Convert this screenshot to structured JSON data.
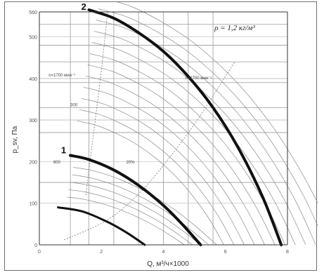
{
  "chart_data": {
    "type": "line",
    "title": "",
    "density_label": "ρ = 1,2 кг/м³",
    "xlabel": "Q, м³/ч×1000",
    "ylabel": "p_sv, Па",
    "xlim": [
      0,
      8
    ],
    "ylim": [
      0,
      560
    ],
    "x_ticks": [
      {
        "value": 0,
        "label": "0"
      },
      {
        "value": 2,
        "label": "2"
      },
      {
        "value": 4,
        "label": "4"
      },
      {
        "value": 6,
        "label": "6"
      },
      {
        "value": 8,
        "label": "8"
      }
    ],
    "y_ticks": [
      {
        "value": 0,
        "label": "0"
      },
      {
        "value": 100,
        "label": "100"
      },
      {
        "value": 200,
        "label": "200"
      },
      {
        "value": 300,
        "label": "300"
      },
      {
        "value": 400,
        "label": "400"
      },
      {
        "value": 500,
        "label": "500"
      },
      {
        "value": 560,
        "label": "560"
      }
    ],
    "grid": true,
    "series": [
      {
        "name": "1",
        "role": "main",
        "x": [
          1.0,
          1.6,
          2.4,
          3.2,
          4.0,
          4.6,
          5.2
        ],
        "values": [
          215,
          205,
          180,
          143,
          95,
          50,
          0
        ]
      },
      {
        "name": "2",
        "role": "main",
        "x": [
          1.6,
          2.4,
          3.2,
          4.0,
          4.8,
          5.6,
          6.4,
          7.2,
          7.8
        ],
        "values": [
          565,
          545,
          510,
          465,
          405,
          330,
          235,
          115,
          0
        ]
      },
      {
        "role": "lower",
        "x": [
          0.6,
          1.4,
          2.2,
          2.8,
          3.4
        ],
        "values": [
          90,
          80,
          55,
          30,
          0
        ]
      }
    ],
    "system_lines": [
      {
        "x": [
          0.8,
          2.2,
          3.3,
          4.2,
          5.0,
          5.7,
          6.3
        ],
        "values": [
          12,
          60,
          130,
          210,
          290,
          370,
          440
        ]
      },
      {
        "x": [
          1.5,
          1.7,
          2.0,
          2.2
        ],
        "values": [
          120,
          240,
          420,
          560
        ]
      }
    ],
    "verticals_x": [
      1.0,
      1.6,
      2.4,
      3.2,
      4.0,
      4.8,
      5.6
    ],
    "horizontals_y": [
      150,
      270,
      300,
      330,
      390,
      400,
      440,
      480,
      530
    ],
    "annotations": [
      {
        "text": "n=1700 мин⁻¹",
        "x": 0.3,
        "y": 405
      },
      {
        "text": "n=2700 мин⁻¹",
        "x": 4.7,
        "y": 398
      },
      {
        "text": "300",
        "x": 1.0,
        "y": 333
      },
      {
        "text": "600",
        "x": 0.45,
        "y": 196
      },
      {
        "text": "20%",
        "x": 2.8,
        "y": 196
      }
    ],
    "curve_labels": [
      {
        "text": "2",
        "x": 1.35,
        "y": 565
      },
      {
        "text": "1",
        "x": 0.7,
        "y": 220
      }
    ]
  }
}
